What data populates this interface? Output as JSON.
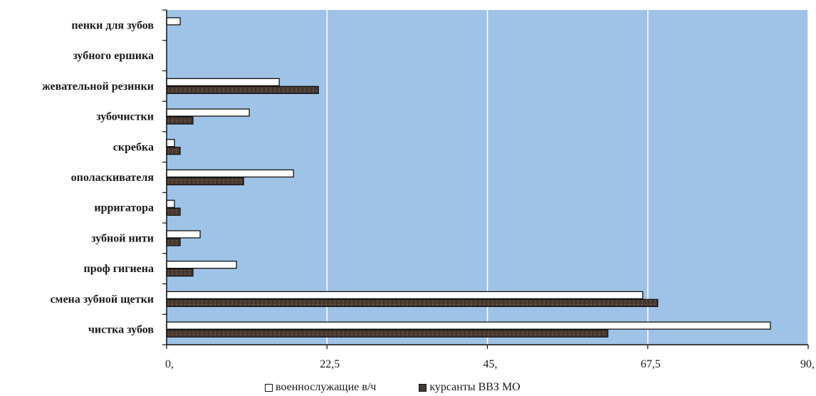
{
  "chart_data": {
    "type": "bar",
    "orientation": "horizontal",
    "categories": [
      "пенки для зубов",
      "зубного ершика",
      "жевательной резинки",
      "зубочистки",
      "скребка",
      "ополаскивателя",
      "ирригатора",
      "зубной нити",
      "проф гигиена",
      "смена зубной щетки",
      "чистка зубов"
    ],
    "series": [
      {
        "name": "военнослужащие в/ч",
        "color": "#ffffff",
        "values": [
          1.9,
          0,
          15.8,
          11.6,
          1.1,
          17.8,
          1.1,
          4.7,
          9.8,
          66.8,
          84.7
        ]
      },
      {
        "name": "курсанты ВВЗ МО",
        "color": "#4a3a31",
        "values": [
          null,
          null,
          21.3,
          3.7,
          1.9,
          10.8,
          1.9,
          1.9,
          3.7,
          68.9,
          61.9
        ]
      }
    ],
    "xlim": [
      0,
      90
    ],
    "xticks": [
      0,
      22.5,
      45,
      67.5,
      90
    ],
    "xtick_labels": [
      "0,",
      "22,5",
      "45,",
      "67,5",
      "90,"
    ],
    "grid": true,
    "plot_background": "#9fc3e6",
    "legend_position": "bottom",
    "title": "",
    "xlabel": "",
    "ylabel": ""
  }
}
